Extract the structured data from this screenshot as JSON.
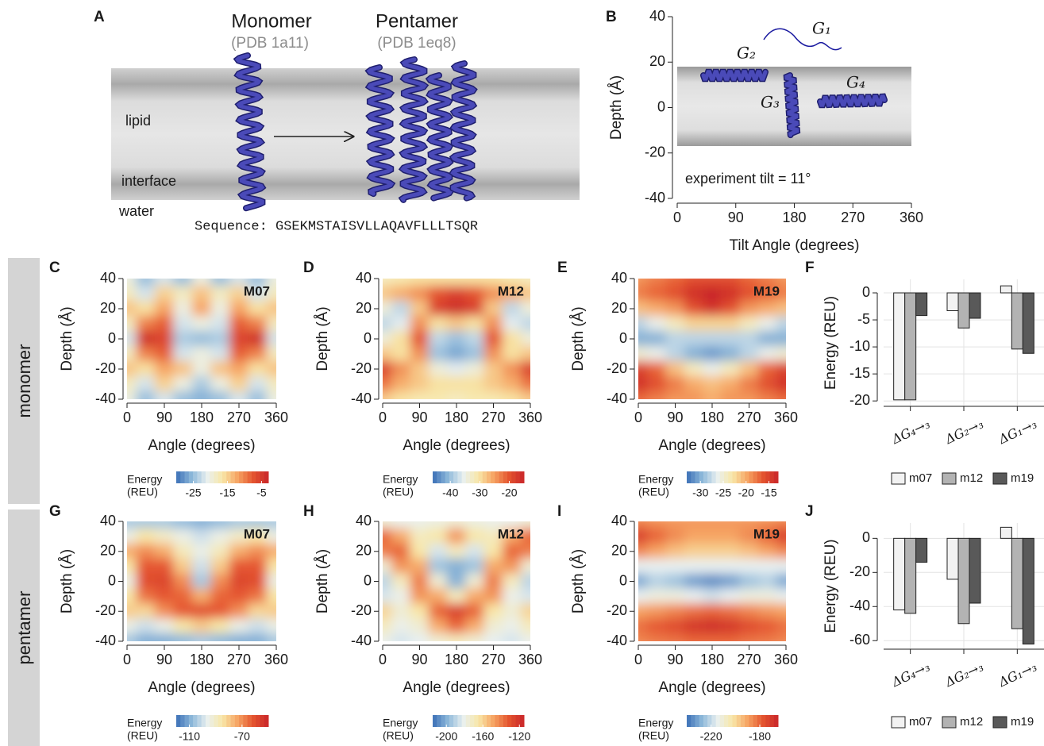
{
  "diagram": {
    "panel": "A",
    "monomer": "Monomer",
    "monomer_pdb": "(PDB 1a11)",
    "pentamer": "Pentamer",
    "pentamer_pdb": "(PDB 1eq8)",
    "layers": [
      "lipid",
      "interface",
      "water"
    ],
    "sequence": "Sequence: GSEKMSTAISVLLAQAVFLLLTSQR"
  },
  "row_labels": [
    "monomer",
    "pentamer"
  ],
  "colormap": [
    "#3b6fb6",
    "#8db8da",
    "#e9f0f0",
    "#f8e7a8",
    "#f6a463",
    "#e4552f",
    "#c9252a"
  ],
  "chart_data": [
    {
      "type": "schematic",
      "panel": "B",
      "xlim": [
        0,
        360
      ],
      "ylim": [
        -40,
        40
      ],
      "xticks": [
        0,
        90,
        180,
        270,
        360
      ],
      "yticks": [
        40,
        20,
        0,
        -20,
        -40
      ],
      "xlabel": "Tilt Angle (degrees)",
      "ylabel": "Depth (Å)",
      "annotations": [
        "G₁",
        "G₂",
        "G₃",
        "G₄"
      ],
      "annotation_text": "experiment tilt = 11°"
    },
    {
      "type": "heatmap",
      "panel": "C",
      "title": "M07",
      "x": [
        0,
        45,
        90,
        135,
        180,
        225,
        270,
        315,
        360
      ],
      "y": [
        40,
        30,
        20,
        10,
        0,
        -10,
        -20,
        -30,
        -40
      ],
      "z": [
        [
          -20,
          -25,
          -22,
          -25,
          -20,
          -25,
          -22,
          -25,
          -20
        ],
        [
          -18,
          -22,
          -15,
          -18,
          -14,
          -18,
          -15,
          -22,
          -18
        ],
        [
          -14,
          -16,
          -12,
          -20,
          -12,
          -20,
          -12,
          -16,
          -14
        ],
        [
          -18,
          -10,
          -8,
          -22,
          -20,
          -22,
          -8,
          -10,
          -18
        ],
        [
          -22,
          -4,
          -6,
          -24,
          -25,
          -24,
          -6,
          -4,
          -22
        ],
        [
          -18,
          -10,
          -8,
          -22,
          -20,
          -22,
          -8,
          -10,
          -18
        ],
        [
          -14,
          -16,
          -12,
          -14,
          -20,
          -14,
          -12,
          -16,
          -14
        ],
        [
          -18,
          -22,
          -15,
          -20,
          -24,
          -20,
          -15,
          -22,
          -18
        ],
        [
          -20,
          -25,
          -22,
          -25,
          -26,
          -25,
          -22,
          -25,
          -20
        ]
      ],
      "xlim": [
        0,
        360
      ],
      "ylim": [
        -40,
        40
      ],
      "xticks": [
        0,
        90,
        180,
        270,
        360
      ],
      "yticks": [
        40,
        20,
        0,
        -20,
        -40
      ],
      "xlabel": "Angle (degrees)",
      "ylabel": "Depth (Å)",
      "colorbar": {
        "label": [
          "Energy",
          "(REU)"
        ],
        "lim": [
          -30,
          -3
        ],
        "ticks": [
          -25,
          -15,
          -5
        ]
      }
    },
    {
      "type": "heatmap",
      "panel": "D",
      "title": "M12",
      "x": [
        0,
        45,
        90,
        135,
        180,
        225,
        270,
        315,
        360
      ],
      "y": [
        40,
        30,
        20,
        10,
        0,
        -10,
        -20,
        -30,
        -40
      ],
      "z": [
        [
          -32,
          -31,
          -30,
          -30,
          -30,
          -30,
          -30,
          -31,
          -32
        ],
        [
          -28,
          -26,
          -24,
          -20,
          -18,
          -20,
          -24,
          -26,
          -28
        ],
        [
          -34,
          -38,
          -28,
          -18,
          -16,
          -18,
          -28,
          -38,
          -34
        ],
        [
          -38,
          -36,
          -24,
          -30,
          -28,
          -30,
          -24,
          -36,
          -38
        ],
        [
          -34,
          -30,
          -20,
          -38,
          -40,
          -38,
          -20,
          -30,
          -34
        ],
        [
          -28,
          -30,
          -24,
          -40,
          -42,
          -40,
          -24,
          -30,
          -28
        ],
        [
          -18,
          -24,
          -28,
          -34,
          -36,
          -34,
          -28,
          -24,
          -18
        ],
        [
          -22,
          -26,
          -28,
          -30,
          -30,
          -30,
          -28,
          -26,
          -22
        ],
        [
          -28,
          -30,
          -31,
          -31,
          -32,
          -31,
          -31,
          -30,
          -28
        ]
      ],
      "xlim": [
        0,
        360
      ],
      "ylim": [
        -40,
        40
      ],
      "xticks": [
        0,
        90,
        180,
        270,
        360
      ],
      "yticks": [
        40,
        20,
        0,
        -20,
        -40
      ],
      "xlabel": "Angle (degrees)",
      "ylabel": "Depth (Å)",
      "colorbar": {
        "label": [
          "Energy",
          "(REU)"
        ],
        "lim": [
          -46,
          -15
        ],
        "ticks": [
          -40,
          -30,
          -20
        ]
      }
    },
    {
      "type": "heatmap",
      "panel": "E",
      "title": "M19",
      "x": [
        0,
        45,
        90,
        135,
        180,
        225,
        270,
        315,
        360
      ],
      "y": [
        40,
        30,
        20,
        10,
        0,
        -10,
        -20,
        -30,
        -40
      ],
      "z": [
        [
          -19,
          -18,
          -17,
          -16,
          -16,
          -16,
          -17,
          -18,
          -19
        ],
        [
          -18,
          -17,
          -16,
          -14,
          -13,
          -14,
          -16,
          -17,
          -18
        ],
        [
          -21,
          -20,
          -19,
          -16,
          -14,
          -16,
          -19,
          -20,
          -21
        ],
        [
          -28,
          -26,
          -24,
          -22,
          -22,
          -22,
          -24,
          -26,
          -28
        ],
        [
          -30,
          -30,
          -28,
          -28,
          -28,
          -28,
          -28,
          -30,
          -30
        ],
        [
          -25,
          -26,
          -28,
          -30,
          -31,
          -30,
          -28,
          -26,
          -25
        ],
        [
          -15,
          -17,
          -21,
          -24,
          -26,
          -24,
          -21,
          -17,
          -15
        ],
        [
          -14,
          -16,
          -18,
          -20,
          -21,
          -20,
          -18,
          -16,
          -14
        ],
        [
          -17,
          -18,
          -19,
          -19,
          -20,
          -19,
          -19,
          -18,
          -17
        ]
      ],
      "xlim": [
        0,
        360
      ],
      "ylim": [
        -40,
        40
      ],
      "xticks": [
        0,
        90,
        180,
        270,
        360
      ],
      "yticks": [
        40,
        20,
        0,
        -20,
        -40
      ],
      "xlabel": "Angle (degrees)",
      "ylabel": "Depth (Å)",
      "colorbar": {
        "label": [
          "Energy",
          "(REU)"
        ],
        "lim": [
          -33,
          -13
        ],
        "ticks": [
          -30,
          -25,
          -20,
          -15
        ]
      }
    },
    {
      "type": "bar",
      "panel": "F",
      "categories": [
        "ΔG₄→₃",
        "ΔG₂→₃",
        "ΔG₁→₃"
      ],
      "series": [
        {
          "name": "m07",
          "color": "#f2f2f2",
          "values": [
            -19.8,
            -3.3,
            1.3
          ]
        },
        {
          "name": "m12",
          "color": "#b3b3b3",
          "values": [
            -19.8,
            -6.5,
            -10.4
          ]
        },
        {
          "name": "m19",
          "color": "#595959",
          "values": [
            -4.2,
            -4.7,
            -11.2
          ]
        }
      ],
      "ylim": [
        -21,
        2.5
      ],
      "yticks": [
        0,
        -5,
        -10,
        -15,
        -20
      ],
      "ylabel": "Energy (REU)",
      "grid": true,
      "legend": "bottom"
    },
    {
      "type": "heatmap",
      "panel": "G",
      "title": "M07",
      "x": [
        0,
        45,
        90,
        135,
        180,
        225,
        270,
        315,
        360
      ],
      "y": [
        40,
        30,
        20,
        10,
        0,
        -10,
        -20,
        -30,
        -40
      ],
      "z": [
        [
          -105,
          -105,
          -105,
          -108,
          -110,
          -108,
          -105,
          -105,
          -105
        ],
        [
          -95,
          -85,
          -90,
          -95,
          -100,
          -95,
          -90,
          -85,
          -95
        ],
        [
          -75,
          -70,
          -75,
          -88,
          -95,
          -88,
          -75,
          -70,
          -75
        ],
        [
          -85,
          -62,
          -62,
          -80,
          -100,
          -80,
          -62,
          -62,
          -85
        ],
        [
          -95,
          -60,
          -58,
          -70,
          -105,
          -70,
          -58,
          -60,
          -95
        ],
        [
          -85,
          -66,
          -62,
          -64,
          -75,
          -64,
          -62,
          -66,
          -85
        ],
        [
          -80,
          -82,
          -70,
          -62,
          -60,
          -62,
          -70,
          -82,
          -80
        ],
        [
          -95,
          -100,
          -95,
          -85,
          -80,
          -85,
          -95,
          -100,
          -95
        ],
        [
          -105,
          -110,
          -110,
          -108,
          -105,
          -108,
          -110,
          -110,
          -105
        ]
      ],
      "xlim": [
        0,
        360
      ],
      "ylim": [
        -40,
        40
      ],
      "xticks": [
        0,
        90,
        180,
        270,
        360
      ],
      "yticks": [
        40,
        20,
        0,
        -20,
        -40
      ],
      "xlabel": "Angle (degrees)",
      "ylabel": "Depth (Å)",
      "colorbar": {
        "label": [
          "Energy",
          "(REU)"
        ],
        "lim": [
          -120,
          -50
        ],
        "ticks": [
          -110,
          -70
        ]
      }
    },
    {
      "type": "heatmap",
      "panel": "H",
      "title": "M12",
      "x": [
        0,
        45,
        90,
        135,
        180,
        225,
        270,
        315,
        360
      ],
      "y": [
        40,
        30,
        20,
        10,
        0,
        -10,
        -20,
        -30,
        -40
      ],
      "z": [
        [
          -175,
          -180,
          -180,
          -178,
          -175,
          -178,
          -180,
          -180,
          -175
        ],
        [
          -135,
          -150,
          -170,
          -165,
          -145,
          -165,
          -170,
          -150,
          -135
        ],
        [
          -140,
          -135,
          -165,
          -185,
          -170,
          -185,
          -165,
          -135,
          -140
        ],
        [
          -175,
          -145,
          -150,
          -195,
          -200,
          -195,
          -150,
          -145,
          -175
        ],
        [
          -190,
          -170,
          -140,
          -175,
          -200,
          -175,
          -140,
          -170,
          -190
        ],
        [
          -185,
          -180,
          -145,
          -150,
          -170,
          -150,
          -145,
          -180,
          -185
        ],
        [
          -160,
          -175,
          -165,
          -135,
          -125,
          -135,
          -165,
          -175,
          -160
        ],
        [
          -170,
          -180,
          -175,
          -150,
          -135,
          -150,
          -175,
          -180,
          -170
        ],
        [
          -180,
          -185,
          -182,
          -175,
          -170,
          -175,
          -182,
          -185,
          -180
        ]
      ],
      "xlim": [
        0,
        360
      ],
      "ylim": [
        -40,
        40
      ],
      "xticks": [
        0,
        90,
        180,
        270,
        360
      ],
      "yticks": [
        40,
        20,
        0,
        -20,
        -40
      ],
      "xlabel": "Angle (degrees)",
      "ylabel": "Depth (Å)",
      "colorbar": {
        "label": [
          "Energy",
          "(REU)"
        ],
        "lim": [
          -215,
          -115
        ],
        "ticks": [
          -200,
          -160,
          -120
        ]
      }
    },
    {
      "type": "heatmap",
      "panel": "I",
      "title": "M19",
      "x": [
        0,
        45,
        90,
        135,
        180,
        225,
        270,
        315,
        360
      ],
      "y": [
        40,
        30,
        20,
        10,
        0,
        -10,
        -20,
        -30,
        -40
      ],
      "z": [
        [
          -185,
          -187,
          -188,
          -188,
          -188,
          -188,
          -188,
          -187,
          -185
        ],
        [
          -172,
          -180,
          -186,
          -190,
          -190,
          -190,
          -186,
          -180,
          -172
        ],
        [
          -185,
          -190,
          -195,
          -198,
          -198,
          -198,
          -195,
          -190,
          -185
        ],
        [
          -215,
          -215,
          -215,
          -215,
          -215,
          -215,
          -215,
          -215,
          -215
        ],
        [
          -230,
          -222,
          -225,
          -232,
          -235,
          -232,
          -225,
          -222,
          -230
        ],
        [
          -215,
          -212,
          -212,
          -215,
          -218,
          -215,
          -212,
          -212,
          -215
        ],
        [
          -190,
          -188,
          -185,
          -182,
          -180,
          -182,
          -185,
          -188,
          -190
        ],
        [
          -182,
          -178,
          -175,
          -170,
          -168,
          -170,
          -175,
          -178,
          -182
        ],
        [
          -185,
          -183,
          -182,
          -180,
          -180,
          -180,
          -182,
          -183,
          -185
        ]
      ],
      "xlim": [
        0,
        360
      ],
      "ylim": [
        -40,
        40
      ],
      "xticks": [
        0,
        90,
        180,
        270,
        360
      ],
      "yticks": [
        40,
        20,
        0,
        -20,
        -40
      ],
      "xlabel": "Angle (degrees)",
      "ylabel": "Depth (Å)",
      "colorbar": {
        "label": [
          "Energy",
          "(REU)"
        ],
        "lim": [
          -240,
          -165
        ],
        "ticks": [
          -220,
          -180
        ]
      }
    },
    {
      "type": "bar",
      "panel": "J",
      "categories": [
        "ΔG₄→₃",
        "ΔG₂→₃",
        "ΔG₁→₃"
      ],
      "series": [
        {
          "name": "m07",
          "color": "#f2f2f2",
          "values": [
            -42,
            -24,
            6.5
          ]
        },
        {
          "name": "m12",
          "color": "#b3b3b3",
          "values": [
            -44,
            -50,
            -53
          ]
        },
        {
          "name": "m19",
          "color": "#595959",
          "values": [
            -14,
            -38,
            -62
          ]
        }
      ],
      "ylim": [
        -65,
        9
      ],
      "yticks": [
        0,
        -20,
        -40,
        -60
      ],
      "ylabel": "Energy (REU)",
      "grid": true,
      "legend": "bottom"
    }
  ]
}
